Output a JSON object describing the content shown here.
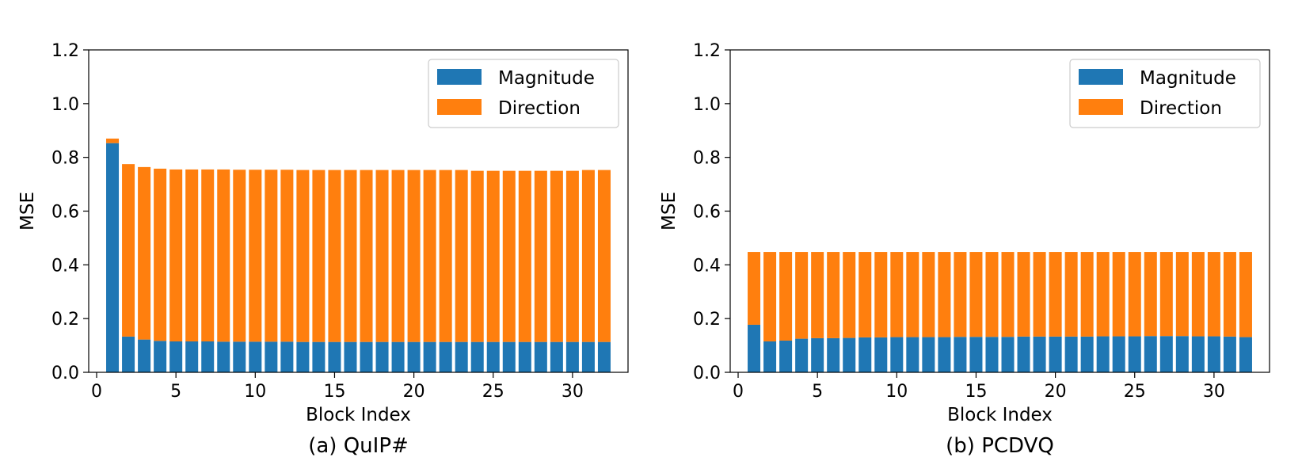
{
  "chart_data": [
    {
      "type": "bar",
      "stacked": true,
      "caption": "(a) QuIP#",
      "xlabel": "Block Index",
      "ylabel": "MSE",
      "xlim": [
        -0.5,
        33.5
      ],
      "ylim": [
        0,
        1.2
      ],
      "xticks": [
        0,
        5,
        10,
        15,
        20,
        25,
        30
      ],
      "xtick_labels": [
        "0",
        "5",
        "10",
        "15",
        "20",
        "25",
        "30"
      ],
      "yticks": [
        0.0,
        0.2,
        0.4,
        0.6,
        0.8,
        1.0,
        1.2
      ],
      "ytick_labels": [
        "0.0",
        "0.2",
        "0.4",
        "0.6",
        "0.8",
        "1.0",
        "1.2"
      ],
      "legend_position": "top-right",
      "grid": false,
      "x": [
        1,
        2,
        3,
        4,
        5,
        6,
        7,
        8,
        9,
        10,
        11,
        12,
        13,
        14,
        15,
        16,
        17,
        18,
        19,
        20,
        21,
        22,
        23,
        24,
        25,
        26,
        27,
        28,
        29,
        30,
        31,
        32
      ],
      "series": [
        {
          "name": "Magnitude",
          "color": "#1f77b4",
          "values": [
            0.853,
            0.133,
            0.122,
            0.117,
            0.115,
            0.115,
            0.115,
            0.114,
            0.114,
            0.114,
            0.114,
            0.114,
            0.113,
            0.113,
            0.113,
            0.113,
            0.113,
            0.113,
            0.113,
            0.113,
            0.113,
            0.113,
            0.113,
            0.113,
            0.113,
            0.113,
            0.113,
            0.113,
            0.113,
            0.113,
            0.113,
            0.113
          ]
        },
        {
          "name": "Direction",
          "color": "#ff7f0e",
          "values": [
            0.017,
            0.642,
            0.642,
            0.641,
            0.64,
            0.64,
            0.64,
            0.641,
            0.64,
            0.64,
            0.64,
            0.64,
            0.64,
            0.64,
            0.64,
            0.64,
            0.64,
            0.64,
            0.64,
            0.64,
            0.64,
            0.64,
            0.64,
            0.637,
            0.637,
            0.637,
            0.637,
            0.637,
            0.637,
            0.637,
            0.64,
            0.64
          ]
        }
      ]
    },
    {
      "type": "bar",
      "stacked": true,
      "caption": "(b) PCDVQ",
      "xlabel": "Block Index",
      "ylabel": "MSE",
      "xlim": [
        -0.5,
        33.5
      ],
      "ylim": [
        0,
        1.2
      ],
      "xticks": [
        0,
        5,
        10,
        15,
        20,
        25,
        30
      ],
      "xtick_labels": [
        "0",
        "5",
        "10",
        "15",
        "20",
        "25",
        "30"
      ],
      "yticks": [
        0.0,
        0.2,
        0.4,
        0.6,
        0.8,
        1.0,
        1.2
      ],
      "ytick_labels": [
        "0.0",
        "0.2",
        "0.4",
        "0.6",
        "0.8",
        "1.0",
        "1.2"
      ],
      "legend_position": "top-right",
      "grid": false,
      "x": [
        1,
        2,
        3,
        4,
        5,
        6,
        7,
        8,
        9,
        10,
        11,
        12,
        13,
        14,
        15,
        16,
        17,
        18,
        19,
        20,
        21,
        22,
        23,
        24,
        25,
        26,
        27,
        28,
        29,
        30,
        31,
        32
      ],
      "series": [
        {
          "name": "Magnitude",
          "color": "#1f77b4",
          "values": [
            0.177,
            0.115,
            0.118,
            0.125,
            0.127,
            0.127,
            0.128,
            0.13,
            0.13,
            0.131,
            0.131,
            0.131,
            0.131,
            0.132,
            0.132,
            0.132,
            0.132,
            0.133,
            0.133,
            0.133,
            0.133,
            0.133,
            0.134,
            0.134,
            0.134,
            0.135,
            0.135,
            0.135,
            0.134,
            0.134,
            0.133,
            0.131
          ]
        },
        {
          "name": "Direction",
          "color": "#ff7f0e",
          "values": [
            0.271,
            0.333,
            0.33,
            0.323,
            0.321,
            0.321,
            0.32,
            0.318,
            0.318,
            0.317,
            0.317,
            0.317,
            0.317,
            0.316,
            0.316,
            0.316,
            0.316,
            0.315,
            0.315,
            0.315,
            0.315,
            0.315,
            0.314,
            0.314,
            0.314,
            0.313,
            0.313,
            0.313,
            0.314,
            0.314,
            0.315,
            0.317
          ]
        }
      ]
    }
  ]
}
